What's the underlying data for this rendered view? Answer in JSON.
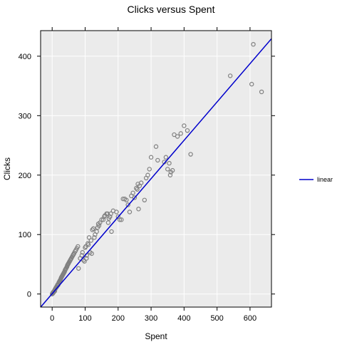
{
  "chart_data": {
    "type": "scatter",
    "title": "Clicks versus Spent",
    "xlabel": "Spent",
    "ylabel": "Clicks",
    "xlim": [
      -35,
      665
    ],
    "ylim": [
      -22,
      443
    ],
    "x_ticks": [
      0,
      100,
      200,
      300,
      400,
      500,
      600
    ],
    "y_ticks": [
      0,
      100,
      200,
      300,
      400
    ],
    "grid": true,
    "colors": {
      "panel_background": "#ebebeb",
      "grid": "#ffffff",
      "points": "#808080",
      "line": "#0000cc"
    },
    "legend": {
      "placement": "right",
      "entries": [
        {
          "name": "linear",
          "color": "#0000cc"
        }
      ]
    },
    "series": [
      {
        "type": "line",
        "name": "linear",
        "fit": {
          "intercept": 0.5,
          "slope": 0.645
        }
      },
      {
        "type": "scatter",
        "x": [
          0,
          1,
          2,
          2,
          3,
          3,
          4,
          5,
          5,
          6,
          7,
          8,
          8,
          9,
          10,
          11,
          12,
          13,
          14,
          15,
          16,
          17,
          18,
          19,
          20,
          21,
          22,
          23,
          24,
          25,
          26,
          27,
          28,
          29,
          30,
          31,
          32,
          33,
          34,
          35,
          36,
          37,
          38,
          39,
          40,
          41,
          42,
          44,
          45,
          46,
          47,
          48,
          49,
          50,
          52,
          53,
          55,
          56,
          58,
          60,
          62,
          64,
          65,
          67,
          70,
          72,
          75,
          78,
          80,
          85,
          90,
          92,
          95,
          98,
          100,
          102,
          104,
          105,
          108,
          110,
          112,
          115,
          118,
          120,
          122,
          125,
          128,
          130,
          135,
          138,
          140,
          142,
          145,
          150,
          155,
          158,
          160,
          165,
          168,
          170,
          172,
          175,
          175,
          178,
          180,
          185,
          195,
          200,
          205,
          210,
          215,
          220,
          225,
          230,
          235,
          240,
          245,
          250,
          255,
          258,
          260,
          262,
          265,
          270,
          280,
          285,
          290,
          295,
          300,
          315,
          320,
          340,
          345,
          350,
          355,
          358,
          360,
          365,
          370,
          380,
          390,
          400,
          410,
          420,
          540,
          605,
          610,
          635
        ],
        "y": [
          0,
          1,
          2,
          1,
          3,
          2,
          3,
          4,
          3,
          5,
          6,
          7,
          5,
          8,
          9,
          10,
          11,
          12,
          12,
          14,
          15,
          16,
          15,
          17,
          19,
          20,
          21,
          22,
          23,
          24,
          25,
          27,
          28,
          29,
          30,
          31,
          32,
          33,
          34,
          35,
          36,
          37,
          38,
          40,
          41,
          42,
          43,
          45,
          46,
          48,
          49,
          50,
          51,
          52,
          54,
          55,
          57,
          58,
          60,
          62,
          64,
          66,
          67,
          69,
          72,
          74,
          77,
          80,
          43,
          60,
          65,
          70,
          57,
          55,
          78,
          80,
          60,
          65,
          85,
          83,
          95,
          70,
          90,
          68,
          108,
          110,
          95,
          100,
          105,
          112,
          118,
          115,
          120,
          125,
          125,
          130,
          132,
          135,
          135,
          120,
          127,
          130,
          130,
          135,
          105,
          140,
          138,
          130,
          125,
          125,
          160,
          160,
          158,
          150,
          138,
          165,
          170,
          162,
          178,
          176,
          185,
          143,
          182,
          187,
          158,
          195,
          200,
          210,
          230,
          248,
          225,
          222,
          230,
          210,
          220,
          200,
          205,
          208,
          268,
          265,
          270,
          283,
          275,
          235,
          367,
          353,
          420,
          340
        ]
      }
    ]
  }
}
